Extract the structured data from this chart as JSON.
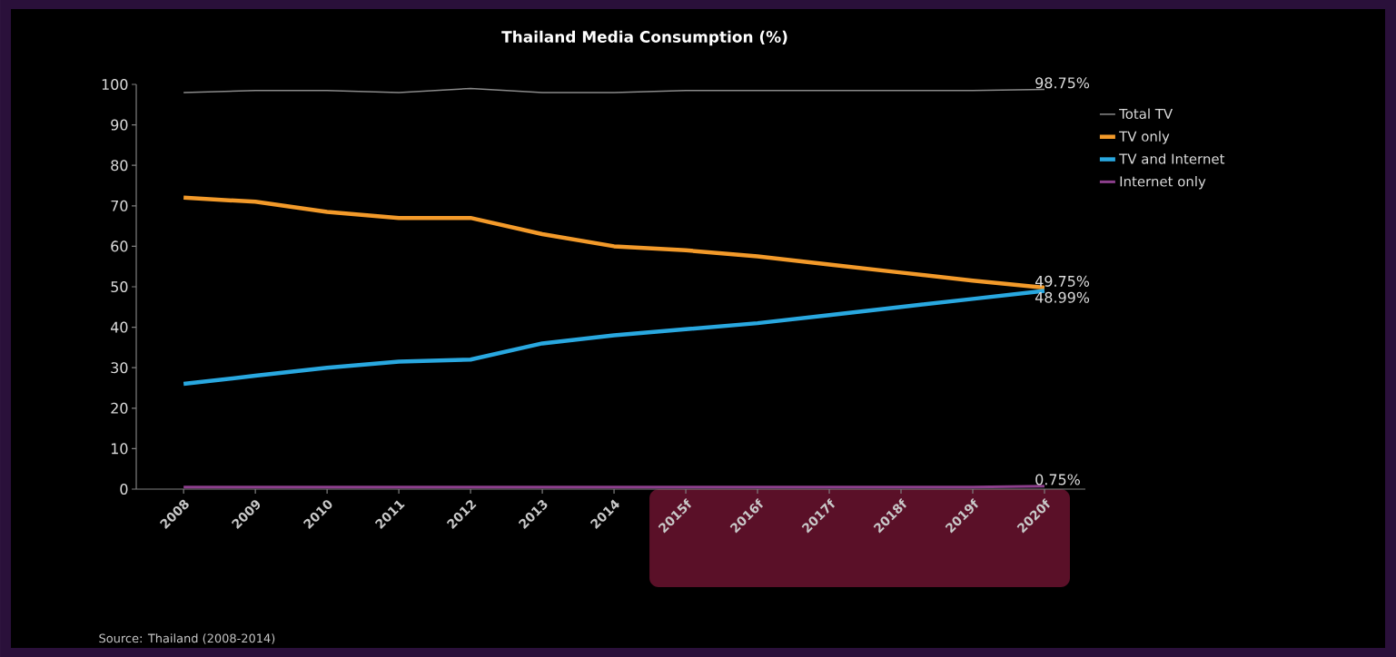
{
  "chart_data": {
    "type": "line",
    "title": "Thailand Media Consumption (%)",
    "categories": [
      "2008",
      "2009",
      "2010",
      "2011",
      "2012",
      "2013",
      "2014",
      "2015f",
      "2016f",
      "2017f",
      "2018f",
      "2019f",
      "2020f"
    ],
    "series": [
      {
        "name": "Total TV",
        "color": "#8a8a8a",
        "values": [
          98,
          98.5,
          98.5,
          98,
          99,
          98,
          98,
          98.5,
          98.5,
          98.5,
          98.5,
          98.5,
          98.75
        ],
        "value_labels": [
          null,
          null,
          null,
          null,
          null,
          null,
          null,
          null,
          null,
          null,
          null,
          null,
          "98.75%"
        ]
      },
      {
        "name": "TV only",
        "color": "#f39a2a",
        "values": [
          72,
          71,
          68.5,
          67,
          67,
          63,
          60,
          59,
          57.5,
          55.5,
          53.5,
          51.5,
          49.75
        ],
        "value_labels": [
          null,
          null,
          null,
          null,
          null,
          null,
          null,
          null,
          null,
          null,
          null,
          null,
          "49.75%"
        ]
      },
      {
        "name": "TV and Internet",
        "color": "#29a8e0",
        "values": [
          26,
          28,
          30,
          31.5,
          32,
          36,
          38,
          39.5,
          41,
          43,
          45,
          47,
          48.99
        ],
        "value_labels": [
          null,
          null,
          null,
          null,
          null,
          null,
          null,
          null,
          null,
          null,
          null,
          null,
          "48.99%"
        ]
      },
      {
        "name": "Internet only",
        "color": "#8c3f8c",
        "values": [
          0.5,
          0.5,
          0.5,
          0.5,
          0.5,
          0.5,
          0.5,
          0.5,
          0.5,
          0.5,
          0.5,
          0.5,
          0.75
        ],
        "value_labels": [
          null,
          null,
          null,
          null,
          null,
          null,
          null,
          null,
          null,
          null,
          null,
          null,
          "0.75%"
        ]
      }
    ],
    "ylim": [
      0,
      100
    ],
    "yticks": [
      0,
      10,
      20,
      30,
      40,
      50,
      60,
      70,
      80,
      90,
      100
    ],
    "grid": false,
    "legend": "right",
    "marker": "none",
    "line_style": "solid",
    "annotations": [
      "Source: Thailand (2008-2014)"
    ]
  }
}
